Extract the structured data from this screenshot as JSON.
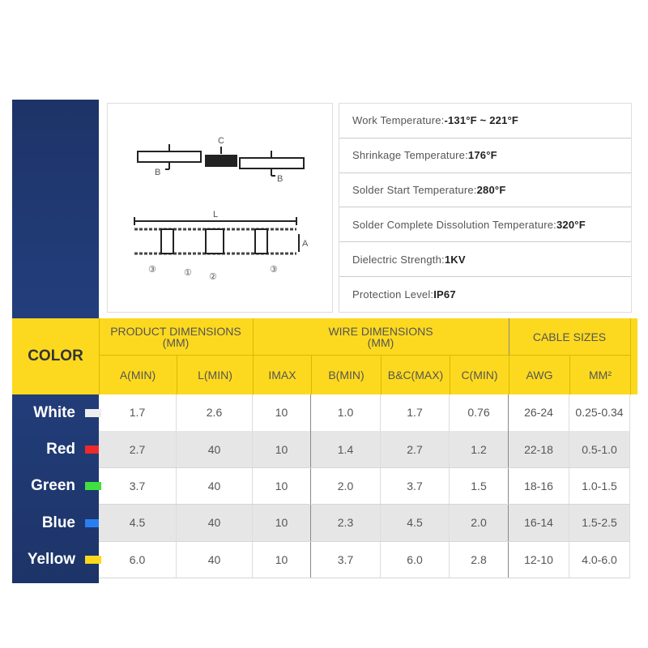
{
  "diagram": {
    "labels": {
      "c": "C",
      "b_left": "B",
      "b_right": "B",
      "l": "L",
      "a": "A",
      "n3_left": "③",
      "n1": "①",
      "n2": "②",
      "n3_right": "③"
    }
  },
  "specs": [
    {
      "label": "Work Temperature: ",
      "value": "-131°F ~ 221°F"
    },
    {
      "label": "Shrinkage Temperature:",
      "value": "176°F"
    },
    {
      "label": "Solder Start Temperature:",
      "value": "280°F"
    },
    {
      "label": "Solder Complete Dissolution Temperature:",
      "value": "320°F"
    },
    {
      "label": "Dielectric Strength:",
      "value": "1KV"
    },
    {
      "label": "Protection Level:",
      "value": "IP67"
    }
  ],
  "table": {
    "color_header": "COLOR",
    "groups": [
      {
        "line1": "PRODUCT DIMENSIONS",
        "line2": "(MM)"
      },
      {
        "line1": "WIRE DIMENSIONS",
        "line2": "(MM)"
      },
      {
        "line1": "CABLE SIZES"
      }
    ],
    "columns": [
      "A(MIN)",
      "L(MIN)",
      "IMAX",
      "B(MIN)",
      "B&C(MAX)",
      "C(MIN)",
      "AWG",
      "MM²"
    ],
    "rows": [
      {
        "color": "White",
        "swatch": "#eeeeee",
        "values": [
          "1.7",
          "2.6",
          "10",
          "1.0",
          "1.7",
          "0.76",
          "26-24",
          "0.25-0.34"
        ]
      },
      {
        "color": "Red",
        "swatch": "#ee2a2a",
        "values": [
          "2.7",
          "40",
          "10",
          "1.4",
          "2.7",
          "1.2",
          "22-18",
          "0.5-1.0"
        ]
      },
      {
        "color": "Green",
        "swatch": "#3fe03f",
        "values": [
          "3.7",
          "40",
          "10",
          "2.0",
          "3.7",
          "1.5",
          "18-16",
          "1.0-1.5"
        ]
      },
      {
        "color": "Blue",
        "swatch": "#2a7ff0",
        "values": [
          "4.5",
          "40",
          "10",
          "2.3",
          "4.5",
          "2.0",
          "16-14",
          "1.5-2.5"
        ]
      },
      {
        "color": "Yellow",
        "swatch": "#fcd91f",
        "values": [
          "6.0",
          "40",
          "10",
          "3.7",
          "6.0",
          "2.8",
          "12-10",
          "4.0-6.0"
        ]
      }
    ]
  },
  "colors": {
    "navy": "#1f3a74",
    "yellow": "#fcd91f"
  }
}
